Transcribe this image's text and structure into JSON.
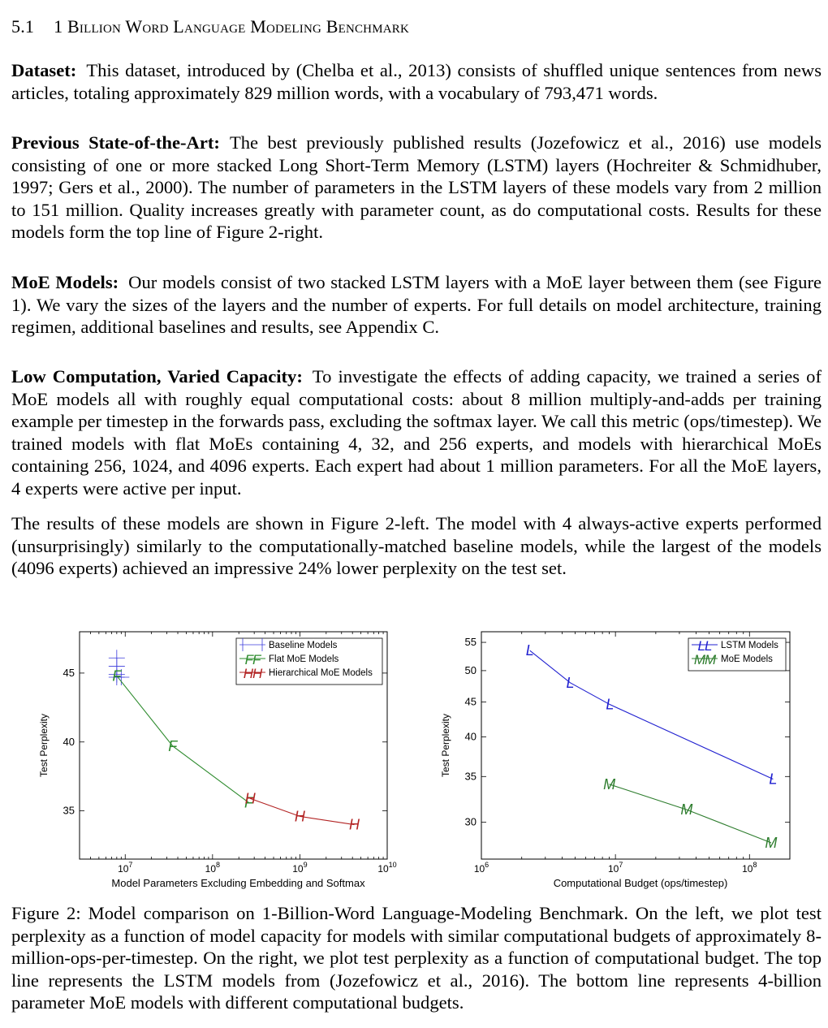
{
  "section": {
    "number": "5.1",
    "title": "1 Billion Word Language Modeling Benchmark"
  },
  "paragraphs": {
    "dataset": {
      "lead": "Dataset:",
      "text": "This dataset, introduced by (Chelba et al., 2013) consists of shuffled unique sentences from news articles, totaling approximately 829 million words, with a vocabulary of 793,471 words."
    },
    "previous": {
      "lead": "Previous State-of-the-Art:",
      "text": "The best previously published results (Jozefowicz et al., 2016) use models consisting of one or more stacked Long Short-Term Memory (LSTM) layers (Hochreiter & Schmidhuber, 1997; Gers et al., 2000). The number of parameters in the LSTM layers of these models vary from 2 million to 151 million. Quality increases greatly with parameter count, as do computational costs. Results for these models form the top line of Figure 2-right."
    },
    "moe": {
      "lead": "MoE Models:",
      "text": "Our models consist of two stacked LSTM layers with a MoE layer between them (see Figure 1). We vary the sizes of the layers and the number of experts. For full details on model architecture, training regimen, additional baselines and results, see Appendix C."
    },
    "low_computation": {
      "lead": "Low Computation, Varied Capacity:",
      "text": "To investigate the effects of adding capacity, we trained a series of MoE models all with roughly equal computational costs: about 8 million multiply-and-adds per training example per timestep in the forwards pass, excluding the softmax layer. We call this metric (ops/timestep). We trained models with flat MoEs containing 4, 32, and 256 experts, and models with hierarchical MoEs containing 256, 1024, and 4096 experts. Each expert had about 1 million parameters. For all the MoE layers, 4 experts were active per input."
    },
    "results": {
      "text": "The results of these models are shown in Figure 2-left. The model with 4 always-active experts performed (unsurprisingly) similarly to the computationally-matched baseline models, while the largest of the models (4096 experts) achieved an impressive 24% lower perplexity on the test set."
    }
  },
  "caption": "Figure 2: Model comparison on 1-Billion-Word Language-Modeling Benchmark. On the left, we plot test perplexity as a function of model capacity for models with similar computational budgets of approximately 8-million-ops-per-timestep. On the right, we plot test perplexity as a function of computational budget. The top line represents the LSTM models from (Jozefowicz et al., 2016). The bottom line represents 4-billion parameter MoE models with different computational budgets.",
  "chart_data": [
    {
      "type": "line",
      "xscale": "log",
      "xlabel": "Model Parameters Excluding Embedding and Softmax",
      "ylabel": "Test Perplexity",
      "xlim": [
        3000000,
        10000000000
      ],
      "ylim": [
        31.5,
        48
      ],
      "xticks": [
        {
          "value": 10000000,
          "label": "10^7"
        },
        {
          "value": 100000000,
          "label": "10^8"
        },
        {
          "value": 1000000000,
          "label": "10^9"
        },
        {
          "value": 10000000000,
          "label": "10^10"
        }
      ],
      "yticks": [
        35,
        40,
        45
      ],
      "legend": "top-right",
      "series": [
        {
          "name": "Baseline Models",
          "marker": "+",
          "color": "#3b3bdc",
          "line": false,
          "points": [
            [
              8000000,
              46.1
            ],
            [
              8000000,
              45.5
            ],
            [
              8000000,
              44.9
            ],
            [
              8000000,
              44.7
            ],
            [
              9000000,
              44.7
            ]
          ]
        },
        {
          "name": "Flat MoE Models",
          "marker": "F",
          "color": "#2e8b2e",
          "line": true,
          "points": [
            [
              8000000,
              44.8
            ],
            [
              35000000,
              39.7
            ],
            [
              260000000,
              35.6
            ]
          ]
        },
        {
          "name": "Hierarchical MoE Models",
          "marker": "H",
          "color": "#b22222",
          "line": true,
          "points": [
            [
              270000000,
              35.9
            ],
            [
              1000000000,
              34.6
            ],
            [
              4200000000,
              34.0
            ]
          ]
        }
      ]
    },
    {
      "type": "line",
      "xscale": "log",
      "yscale": "log",
      "xlabel": "Computational Budget (ops/timestep)",
      "ylabel": "Test Perplexity",
      "xlim": [
        1000000,
        200000000
      ],
      "ylim": [
        26.5,
        57
      ],
      "xticks": [
        {
          "value": 1000000,
          "label": "10^6"
        },
        {
          "value": 10000000,
          "label": "10^7"
        },
        {
          "value": 100000000,
          "label": "10^8"
        }
      ],
      "yticks": [
        30,
        35,
        40,
        45,
        50,
        55
      ],
      "legend": "top-right",
      "series": [
        {
          "name": "LSTM Models",
          "marker": "L",
          "color": "#2020d0",
          "line": true,
          "points": [
            [
              2300000,
              53.5
            ],
            [
              4600000,
              48.0
            ],
            [
              9100000,
              44.6
            ],
            [
              150000000,
              34.7
            ]
          ]
        },
        {
          "name": "MoE Models",
          "marker": "M",
          "color": "#2e7d2e",
          "line": true,
          "points": [
            [
              9000000,
              34.1
            ],
            [
              34000000,
              31.3
            ],
            [
              145000000,
              28.0
            ]
          ]
        }
      ]
    }
  ]
}
